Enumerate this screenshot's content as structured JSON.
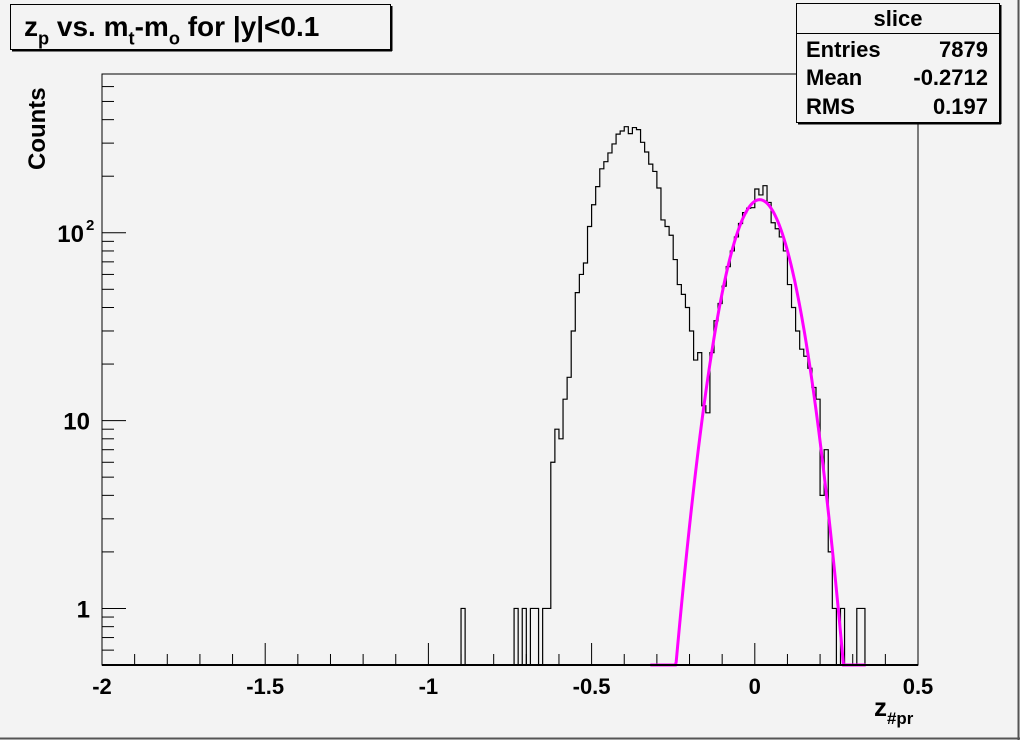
{
  "chart_data": {
    "type": "histogram",
    "title_parts": [
      {
        "t": "z"
      },
      {
        "t": "p",
        "sub": true
      },
      {
        "t": " vs. m"
      },
      {
        "t": "t",
        "sub": true
      },
      {
        "t": "-m"
      },
      {
        "t": "o",
        "sub": true
      },
      {
        "t": " for |y|<0.1"
      }
    ],
    "xlabel_parts": [
      {
        "t": "z"
      },
      {
        "t": "#pr",
        "sub": true
      }
    ],
    "ylabel": "Counts",
    "xlim": [
      -2,
      0.5
    ],
    "ylim": [
      0.5,
      700
    ],
    "yscale": "log",
    "bins": {
      "n": 200,
      "min": -2,
      "max": 0.5
    },
    "x_ticks": [
      {
        "v": -2,
        "label": "-2"
      },
      {
        "v": -1.5,
        "label": "-1.5"
      },
      {
        "v": -1,
        "label": "-1"
      },
      {
        "v": -0.5,
        "label": "-0.5"
      },
      {
        "v": 0,
        "label": "0"
      },
      {
        "v": 0.5,
        "label": "0.5"
      }
    ],
    "y_ticks": [
      {
        "v": 1,
        "label": "1"
      },
      {
        "v": 10,
        "label": "10"
      },
      {
        "v": 100,
        "label": "10",
        "sup": "2"
      }
    ],
    "bin_contents": {
      "88": 1,
      "101": 1,
      "103": 1,
      "105": 1,
      "106": 1,
      "108": 1,
      "109": 1,
      "110": 6,
      "111": 9,
      "112": 8,
      "113": 13,
      "114": 17,
      "115": 30,
      "116": 48,
      "117": 60,
      "118": 69,
      "119": 108,
      "120": 141,
      "121": 176,
      "122": 219,
      "123": 239,
      "124": 266,
      "125": 297,
      "126": 335,
      "127": 348,
      "128": 367,
      "129": 337,
      "130": 363,
      "131": 354,
      "132": 303,
      "133": 269,
      "134": 232,
      "135": 212,
      "136": 173,
      "137": 117,
      "138": 108,
      "139": 97,
      "140": 72,
      "141": 53,
      "142": 47,
      "143": 40,
      "144": 30,
      "145": 21,
      "146": 23,
      "147": 12,
      "148": 11,
      "149": 23,
      "150": 34,
      "151": 42,
      "152": 52,
      "153": 66,
      "154": 80,
      "155": 95,
      "156": 112,
      "157": 128,
      "158": 135,
      "159": 136,
      "160": 171,
      "161": 159,
      "162": 178,
      "163": 145,
      "164": 113,
      "165": 105,
      "166": 95,
      "167": 80,
      "168": 53,
      "169": 40,
      "170": 30,
      "171": 24,
      "172": 22,
      "173": 19,
      "174": 15,
      "175": 13,
      "176": 4,
      "177": 7,
      "178": 2,
      "179": 1,
      "181": 1,
      "185": 1,
      "186": 1
    },
    "fit": {
      "function": "gaus",
      "constant": 150,
      "mean": 0.015,
      "sigma": 0.076,
      "range": [
        -0.32,
        0.34
      ],
      "color": "#ff00ff"
    },
    "line_color": "#000000",
    "grid": false,
    "stats": {
      "title": "slice",
      "rows": [
        {
          "name": "Entries",
          "value": "7879"
        },
        {
          "name": "Mean",
          "value": "-0.2712"
        },
        {
          "name": "RMS",
          "value": "0.197"
        }
      ],
      "placement": "top-right"
    }
  }
}
